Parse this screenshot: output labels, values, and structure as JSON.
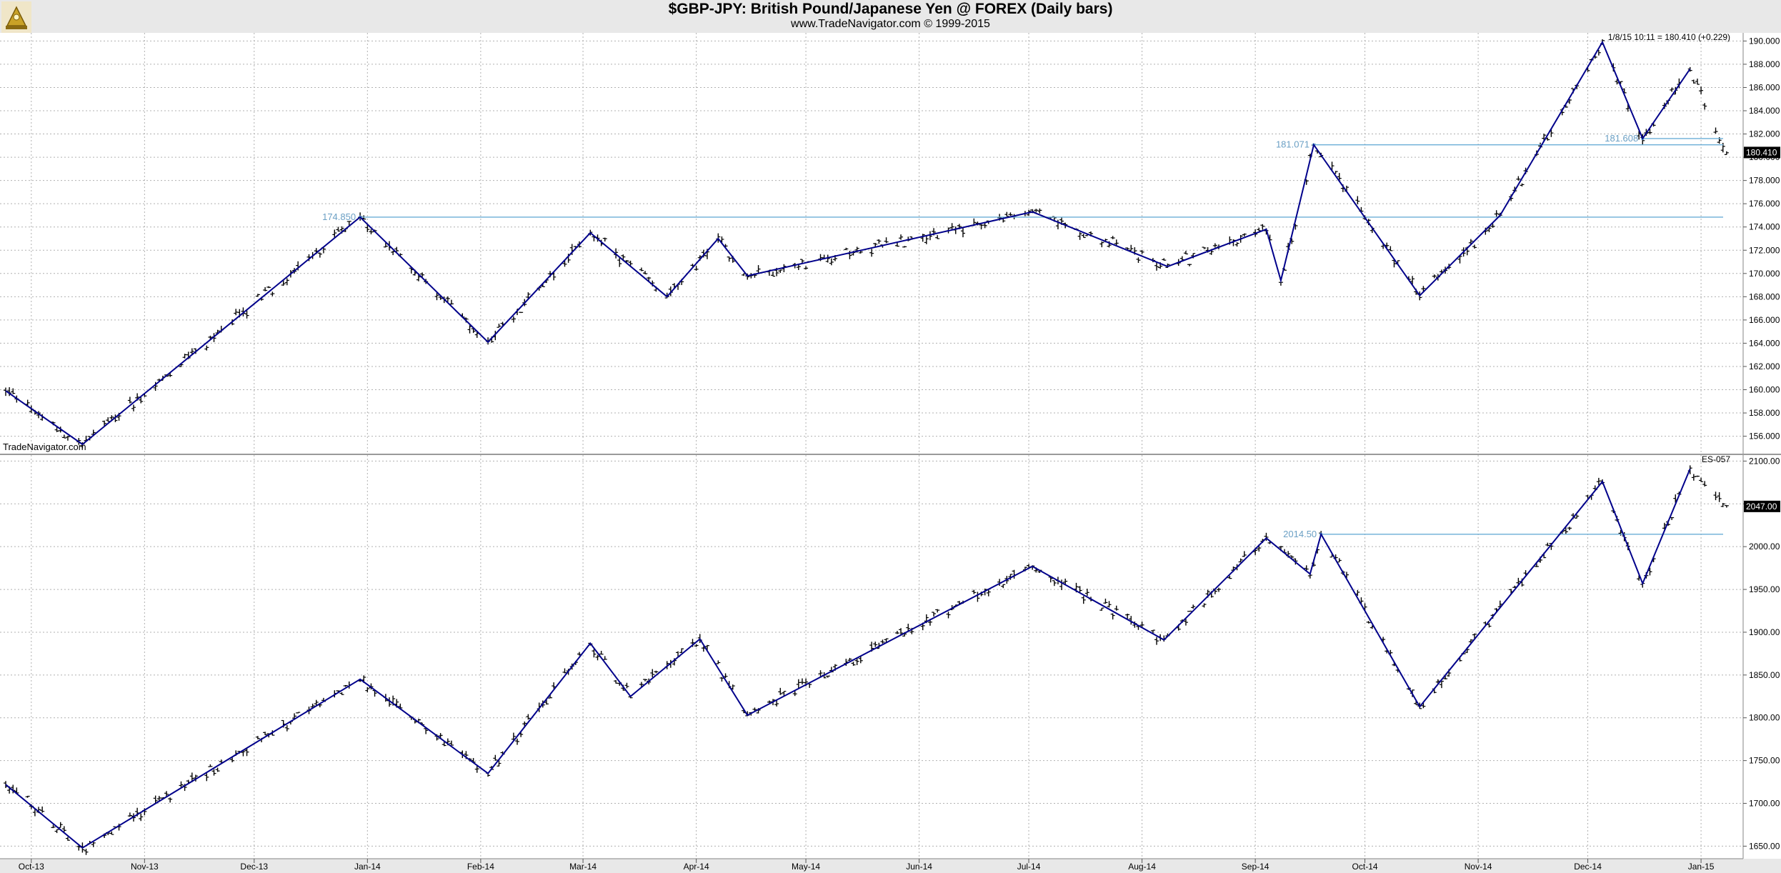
{
  "header": {
    "title": "$GBP-JPY:  British Pound/Japanese Yen @ FOREX  (Daily bars)",
    "subtitle": "www.TradeNavigator.com © 1999-2015",
    "watermark": "TradeNavigator.com"
  },
  "colors": {
    "background": "#ffffff",
    "frame": "#e8e8e8",
    "bars": "#000000",
    "zigzag": "#00008b",
    "level_line": "#6aaed6",
    "level_text": "#6a9fc4",
    "grid": "#b0b0b0",
    "price_box": "#000000"
  },
  "x_axis": {
    "tick_labels": [
      "Oct-13",
      "Nov-13",
      "Dec-13",
      "Jan-14",
      "Feb-14",
      "Mar-14",
      "Apr-14",
      "May-14",
      "Jun-14",
      "Jul-14",
      "Aug-14",
      "Sep-14",
      "Oct-14",
      "Nov-14",
      "Dec-14",
      "Jan-15"
    ],
    "range": [
      "2013-09-24",
      "2015-01-09"
    ]
  },
  "chart_data": [
    {
      "type": "line",
      "name": "GBP-JPY",
      "bar_style": "ohlc-daily",
      "header_text": "1/8/15 10:11 = 180.410 (+0.229)",
      "last_price": "180.410",
      "y_ticks": [
        "156.000",
        "158.000",
        "160.000",
        "162.000",
        "164.000",
        "166.000",
        "168.000",
        "170.000",
        "172.000",
        "174.000",
        "176.000",
        "178.000",
        "180.000",
        "182.000",
        "184.000",
        "186.000",
        "188.000",
        "190.000"
      ],
      "ylim": [
        154.5,
        190.7
      ],
      "grid": true,
      "x": [
        "2013-09-24",
        "2013-10-15",
        "2013-12-30",
        "2014-02-03",
        "2014-03-03",
        "2014-03-24",
        "2014-04-07",
        "2014-04-15",
        "2014-07-02",
        "2014-08-08",
        "2014-09-04",
        "2014-09-08",
        "2014-09-17",
        "2014-10-16",
        "2014-11-07",
        "2014-12-05",
        "2014-12-16",
        "2014-12-29",
        "2015-01-08"
      ],
      "values": [
        159.9,
        155.3,
        174.85,
        164.1,
        173.5,
        168.0,
        173.0,
        169.8,
        175.3,
        170.6,
        173.8,
        169.4,
        181.071,
        168.1,
        175.0,
        189.9,
        181.608,
        187.6,
        180.41
      ],
      "zigzag": [
        {
          "x": "2013-09-24",
          "y": 159.9
        },
        {
          "x": "2013-10-15",
          "y": 155.3
        },
        {
          "x": "2013-12-30",
          "y": 174.85
        },
        {
          "x": "2014-02-03",
          "y": 164.1
        },
        {
          "x": "2014-03-03",
          "y": 173.5
        },
        {
          "x": "2014-03-24",
          "y": 168.0
        },
        {
          "x": "2014-04-07",
          "y": 173.0
        },
        {
          "x": "2014-04-15",
          "y": 169.8
        },
        {
          "x": "2014-07-02",
          "y": 175.3
        },
        {
          "x": "2014-08-08",
          "y": 170.6
        },
        {
          "x": "2014-09-04",
          "y": 173.8
        },
        {
          "x": "2014-09-08",
          "y": 169.4
        },
        {
          "x": "2014-09-17",
          "y": 181.071
        },
        {
          "x": "2014-10-16",
          "y": 168.1
        },
        {
          "x": "2014-11-07",
          "y": 175.0
        },
        {
          "x": "2014-12-05",
          "y": 189.9
        },
        {
          "x": "2014-12-16",
          "y": 181.608
        },
        {
          "x": "2014-12-29",
          "y": 187.6
        }
      ],
      "levels": [
        {
          "label": "174.850",
          "value": 174.85,
          "from": "2013-12-30"
        },
        {
          "label": "181.071",
          "value": 181.071,
          "from": "2014-09-17"
        },
        {
          "label": "181.608",
          "value": 181.608,
          "from": "2014-12-16"
        }
      ]
    },
    {
      "type": "line",
      "name": "ES-057",
      "bar_style": "ohlc-daily",
      "header_text": "ES-057",
      "last_price": "2047.00",
      "y_ticks": [
        "1650.00",
        "1700.00",
        "1750.00",
        "1800.00",
        "1850.00",
        "1900.00",
        "1950.00",
        "2000.00",
        "2050.00",
        "2100.00"
      ],
      "ylim": [
        1637,
        2107
      ],
      "grid": true,
      "x": [
        "2013-09-24",
        "2013-10-15",
        "2013-12-30",
        "2014-02-03",
        "2014-03-03",
        "2014-03-14",
        "2014-04-02",
        "2014-04-15",
        "2014-07-02",
        "2014-08-07",
        "2014-09-04",
        "2014-09-16",
        "2014-09-19",
        "2014-10-16",
        "2014-12-05",
        "2014-12-16",
        "2014-12-29",
        "2015-01-08"
      ],
      "values": [
        1722,
        1648,
        1845,
        1735,
        1887,
        1825,
        1892,
        1803,
        1977,
        1891,
        2010,
        1968,
        2014.5,
        1813,
        2076,
        1957,
        2091,
        2047
      ],
      "zigzag": [
        {
          "x": "2013-09-24",
          "y": 1722
        },
        {
          "x": "2013-10-15",
          "y": 1648
        },
        {
          "x": "2013-12-30",
          "y": 1845
        },
        {
          "x": "2014-02-03",
          "y": 1735
        },
        {
          "x": "2014-03-03",
          "y": 1887
        },
        {
          "x": "2014-03-14",
          "y": 1825
        },
        {
          "x": "2014-04-02",
          "y": 1892
        },
        {
          "x": "2014-04-15",
          "y": 1803
        },
        {
          "x": "2014-07-02",
          "y": 1977
        },
        {
          "x": "2014-08-07",
          "y": 1891
        },
        {
          "x": "2014-09-04",
          "y": 2010
        },
        {
          "x": "2014-09-16",
          "y": 1968
        },
        {
          "x": "2014-09-19",
          "y": 2014.5
        },
        {
          "x": "2014-10-16",
          "y": 1813
        },
        {
          "x": "2014-12-05",
          "y": 2076
        },
        {
          "x": "2014-12-16",
          "y": 1957
        },
        {
          "x": "2014-12-29",
          "y": 2091
        }
      ],
      "levels": [
        {
          "label": "2014.50",
          "value": 2014.5,
          "from": "2014-09-19"
        }
      ]
    }
  ]
}
